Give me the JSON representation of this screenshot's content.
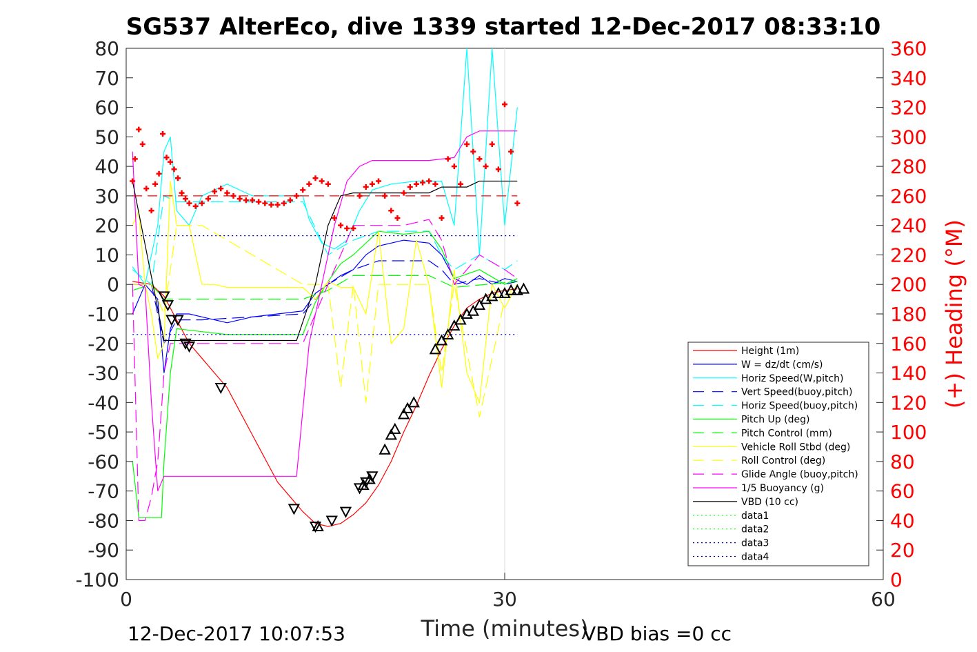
{
  "chart_data": {
    "type": "line",
    "title": "SG537 AlterEco, dive 1339 started 12-Dec-2017 08:33:10",
    "xlabel": "Time (minutes)",
    "ylabel": "",
    "y2label": "(+) Heading (°M)",
    "xlim": [
      0,
      60
    ],
    "ylim": [
      -100,
      80
    ],
    "y2lim": [
      0,
      360
    ],
    "x_ticks": [
      "0",
      "30",
      "60"
    ],
    "y_ticks": [
      "-100",
      "-90",
      "-80",
      "-70",
      "-60",
      "-50",
      "-40",
      "-30",
      "-20",
      "-10",
      "0",
      "10",
      "20",
      "30",
      "40",
      "50",
      "60",
      "70",
      "80"
    ],
    "y2_ticks": [
      "0",
      "20",
      "40",
      "60",
      "80",
      "100",
      "120",
      "140",
      "160",
      "180",
      "200",
      "220",
      "240",
      "260",
      "280",
      "300",
      "320",
      "340",
      "360"
    ],
    "grid": "x only at 30",
    "legend_position": "lower-right inside",
    "footer_left": "12-Dec-2017 10:07:53",
    "footer_right": "VBD bias =0 cc",
    "colors": {
      "height": "#ff0000",
      "w": "#0000ff",
      "hspeed": "#00ffff",
      "pitch": "#00ff00",
      "roll": "#ffff00",
      "glide": "#ff00ff",
      "vbd": "#000000",
      "heading": "#ff0000"
    },
    "series": [
      {
        "name": "Height (1m)",
        "color": "#ff0000",
        "dash": "solid",
        "x": [
          0.5,
          2,
          3,
          4,
          5,
          6,
          7,
          8,
          9,
          10,
          11,
          12,
          13,
          14,
          15,
          16,
          17,
          18,
          19,
          20,
          21,
          22,
          23,
          24,
          25,
          26,
          27,
          28,
          29,
          30,
          31
        ],
        "y": [
          1,
          0,
          -4,
          -12,
          -20,
          -25,
          -30,
          -35,
          -43,
          -51,
          -59,
          -67,
          -72,
          -77,
          -81,
          -82,
          -81,
          -78,
          -74,
          -68,
          -60,
          -50,
          -41,
          -31,
          -22,
          -14,
          -8,
          -5,
          -3,
          -2,
          -1.5
        ]
      },
      {
        "name": "W = dz/dt (cm/s)",
        "color": "#0000ff",
        "dash": "solid",
        "x": [
          0.5,
          1.5,
          2.5,
          3,
          3.5,
          4,
          5,
          6,
          7,
          8,
          10,
          12,
          14,
          15,
          16,
          17,
          18,
          19,
          20,
          22,
          24,
          25,
          26,
          27,
          28,
          29,
          30,
          31
        ],
        "y": [
          -10,
          0,
          -5,
          -30,
          -15,
          -10,
          -10,
          -11,
          -12,
          -13,
          -11,
          -10,
          -9,
          -3,
          0,
          3,
          5,
          10,
          13,
          15,
          14,
          10,
          2,
          0,
          3,
          0,
          2,
          1
        ]
      },
      {
        "name": "Horiz Speed(W,pitch)",
        "color": "#00ffff",
        "dash": "solid",
        "x": [
          0.5,
          1.5,
          2.5,
          3,
          3.5,
          4,
          5,
          6,
          8,
          10,
          12,
          13,
          14,
          14.5,
          15.5,
          16.5,
          17.5,
          18.5,
          19.5,
          21,
          23,
          25,
          26,
          26.5,
          27,
          28,
          29,
          30,
          31
        ],
        "y": [
          6,
          0,
          20,
          45,
          50,
          25,
          20,
          30,
          34,
          30,
          30,
          30,
          30,
          22,
          14,
          12,
          15,
          25,
          32,
          34,
          35,
          35,
          20,
          50,
          80,
          10,
          80,
          20,
          60
        ]
      },
      {
        "name": "Vert Speed(buoy,pitch)",
        "color": "#0000ff",
        "dash": "dashed",
        "x": [
          0.5,
          2,
          3,
          4,
          6,
          10,
          14,
          16,
          18,
          20,
          22,
          24,
          25,
          26,
          28,
          30,
          31
        ],
        "y": [
          0,
          0,
          -20,
          -12,
          -12,
          -11,
          -10,
          0,
          5,
          8,
          8,
          8,
          5,
          0,
          2,
          0,
          1
        ]
      },
      {
        "name": "Horiz Speed(buoy,pitch)",
        "color": "#00ffff",
        "dash": "dashed",
        "x": [
          0.5,
          2,
          3,
          4,
          6,
          10,
          14,
          16,
          18,
          20,
          22,
          24,
          25,
          26,
          28,
          30,
          31
        ],
        "y": [
          5,
          0,
          30,
          28,
          28,
          28,
          28,
          10,
          15,
          18,
          18,
          18,
          10,
          5,
          10,
          5,
          8
        ]
      },
      {
        "name": "Pitch Up (deg)",
        "color": "#00ff00",
        "dash": "solid",
        "x": [
          0.5,
          1,
          2,
          2.8,
          3,
          3.5,
          4,
          6,
          8,
          10,
          12,
          13,
          14,
          15,
          16,
          17,
          18,
          20,
          22,
          24,
          25,
          26,
          28,
          30,
          31
        ],
        "y": [
          -60,
          -79,
          -79,
          -79,
          -60,
          -30,
          -15,
          -16,
          -17,
          -17,
          -17,
          -17,
          -17,
          -6,
          1,
          7,
          10,
          18,
          17,
          18,
          12,
          2,
          5,
          0,
          2
        ]
      },
      {
        "name": "Pitch Control (mm)",
        "color": "#00ff00",
        "dash": "dashed",
        "x": [
          0.5,
          2,
          3,
          4,
          6,
          14,
          16,
          18,
          20,
          24,
          26,
          31
        ],
        "y": [
          -2,
          0,
          -5,
          -5,
          -5,
          -5,
          -2,
          3,
          3,
          3,
          -1,
          1
        ]
      },
      {
        "name": "Vehicle Roll Stbd (deg)",
        "color": "#ffff00",
        "dash": "solid",
        "x": [
          0.5,
          1,
          1.5,
          2,
          2.5,
          3,
          3.5,
          4,
          5,
          6,
          7,
          8,
          10,
          12,
          14,
          15,
          16,
          17,
          18,
          19,
          20,
          21,
          22,
          23,
          24,
          25,
          26,
          27,
          28,
          29,
          30,
          31
        ],
        "y": [
          20,
          25,
          0,
          -10,
          -25,
          -20,
          35,
          20,
          20,
          0,
          0,
          -1,
          -1,
          -1,
          -1,
          -5,
          1,
          -1,
          -1,
          -10,
          18,
          -20,
          -15,
          15,
          0,
          -35,
          5,
          -30,
          -40,
          0,
          -8,
          0
        ]
      },
      {
        "name": "Roll Control (deg)",
        "color": "#ffff00",
        "dash": "dashed",
        "x": [
          0.5,
          2,
          3,
          4,
          6,
          14,
          16,
          17,
          18,
          19,
          20,
          22,
          24,
          25,
          26,
          28,
          30,
          31
        ],
        "y": [
          0,
          0,
          -10,
          20,
          20,
          0,
          0,
          -35,
          0,
          -40,
          0,
          0,
          0,
          -30,
          0,
          -45,
          -5,
          0
        ]
      },
      {
        "name": "Glide Angle (buoy,pitch)",
        "color": "#ff00ff",
        "dash": "dashed",
        "x": [
          0.5,
          1,
          1.5,
          2,
          2.5,
          3,
          3.5,
          4,
          6,
          10,
          14,
          16,
          18,
          20,
          22,
          24,
          25,
          26,
          28,
          30,
          31
        ],
        "y": [
          0,
          -80,
          -80,
          -72,
          -60,
          -30,
          -20,
          -20,
          -20,
          -20,
          -20,
          0,
          20,
          20,
          20,
          22,
          15,
          0,
          10,
          5,
          2
        ]
      },
      {
        "name": "1/5 Buoyancy (g)",
        "color": "#ff00ff",
        "dash": "solid",
        "x": [
          0.5,
          1,
          1.5,
          2,
          2.5,
          3,
          3.5,
          10,
          13.5,
          14.5,
          15.5,
          16.5,
          17.5,
          18.5,
          19.5,
          24,
          26,
          27,
          28,
          31
        ],
        "y": [
          45,
          0,
          -1,
          -40,
          -70,
          -65,
          -65,
          -65,
          -65,
          -20,
          0,
          20,
          35,
          40,
          42,
          42,
          43,
          50,
          52,
          52
        ]
      },
      {
        "name": "VBD (10 cc)",
        "color": "#000000",
        "dash": "solid",
        "x": [
          0.5,
          3,
          13.5,
          15,
          16,
          17,
          18,
          24,
          25,
          27,
          28,
          31
        ],
        "y": [
          35,
          -19,
          -19,
          0,
          20,
          30,
          31,
          31,
          33,
          33,
          35,
          35
        ]
      },
      {
        "name": "data1",
        "color": "#00ff00",
        "dash": "dotted",
        "x": [],
        "y": []
      },
      {
        "name": "data2",
        "color": "#00ff00",
        "dash": "dotted",
        "x": [],
        "y": []
      },
      {
        "name": "data3",
        "color": "#0000aa",
        "dash": "dotted",
        "x": [
          0.5,
          31
        ],
        "y": [
          16.5,
          16.5
        ]
      },
      {
        "name": "data4",
        "color": "#0000aa",
        "dash": "dotted",
        "x": [
          0.5,
          31
        ],
        "y": [
          -17,
          -17
        ]
      }
    ],
    "heading_reference": {
      "y2": 260,
      "color": "#ff0000",
      "dash": "dashed",
      "x": [
        0.5,
        31
      ]
    },
    "heading_points": {
      "color": "#ff0000",
      "x": [
        0.5,
        0.7,
        1.0,
        1.3,
        1.6,
        2.0,
        2.3,
        2.6,
        2.9,
        3.2,
        3.5,
        3.8,
        4.1,
        4.4,
        4.7,
        5.0,
        5.5,
        6.0,
        6.5,
        7.0,
        7.5,
        8.0,
        8.5,
        9.0,
        9.5,
        10.0,
        10.5,
        11.0,
        11.5,
        12.0,
        12.5,
        13.0,
        13.5,
        14.0,
        14.5,
        15.0,
        15.5,
        16.0,
        16.5,
        17.0,
        17.5,
        18.0,
        18.5,
        19.0,
        19.5,
        20.0,
        20.5,
        21.0,
        21.5,
        22.0,
        22.5,
        23.0,
        23.5,
        24.0,
        24.5,
        25.0,
        25.5,
        26.0,
        26.5,
        27.0,
        27.5,
        28.0,
        28.5,
        29.0,
        29.5,
        30.0,
        30.5,
        31.0
      ],
      "y2": [
        270,
        285,
        305,
        295,
        265,
        250,
        268,
        275,
        302,
        286,
        283,
        278,
        272,
        262,
        258,
        255,
        253,
        255,
        258,
        263,
        265,
        262,
        260,
        258,
        257,
        257,
        256,
        255,
        254,
        254,
        255,
        257,
        260,
        264,
        268,
        272,
        270,
        268,
        245,
        240,
        238,
        238,
        260,
        266,
        268,
        270,
        260,
        250,
        245,
        262,
        266,
        268,
        269,
        270,
        268,
        245,
        285,
        280,
        268,
        295,
        290,
        285,
        280,
        295,
        278,
        322,
        290,
        255
      ]
    },
    "down_markers": {
      "x": [
        3.0,
        3.3,
        3.6,
        4.1,
        4.7,
        5.0,
        7.5,
        13.3,
        15.0,
        16.3,
        17.4,
        18.5,
        19.0,
        19.5
      ],
      "y": [
        -4,
        -7,
        -12,
        -12,
        -20,
        -21,
        -35,
        -76,
        -82,
        -80,
        -77,
        -69,
        -67,
        -65
      ]
    },
    "up_markers": {
      "x": [
        15.2,
        18.8,
        19.3,
        20.5,
        21.0,
        21.3,
        22.0,
        22.3,
        22.8,
        24.5,
        25.0,
        25.5,
        26.0,
        26.5,
        27.0,
        27.5,
        28.0,
        28.5,
        29.0,
        29.5,
        30.0,
        30.5,
        31.0,
        31.5
      ],
      "y": [
        -82,
        -68,
        -66,
        -56,
        -51,
        -49,
        -44,
        -42,
        -40,
        -22,
        -19,
        -17,
        -14,
        -12,
        -10,
        -9,
        -7,
        -5,
        -4,
        -3,
        -3,
        -2,
        -2,
        -1.5
      ]
    }
  }
}
